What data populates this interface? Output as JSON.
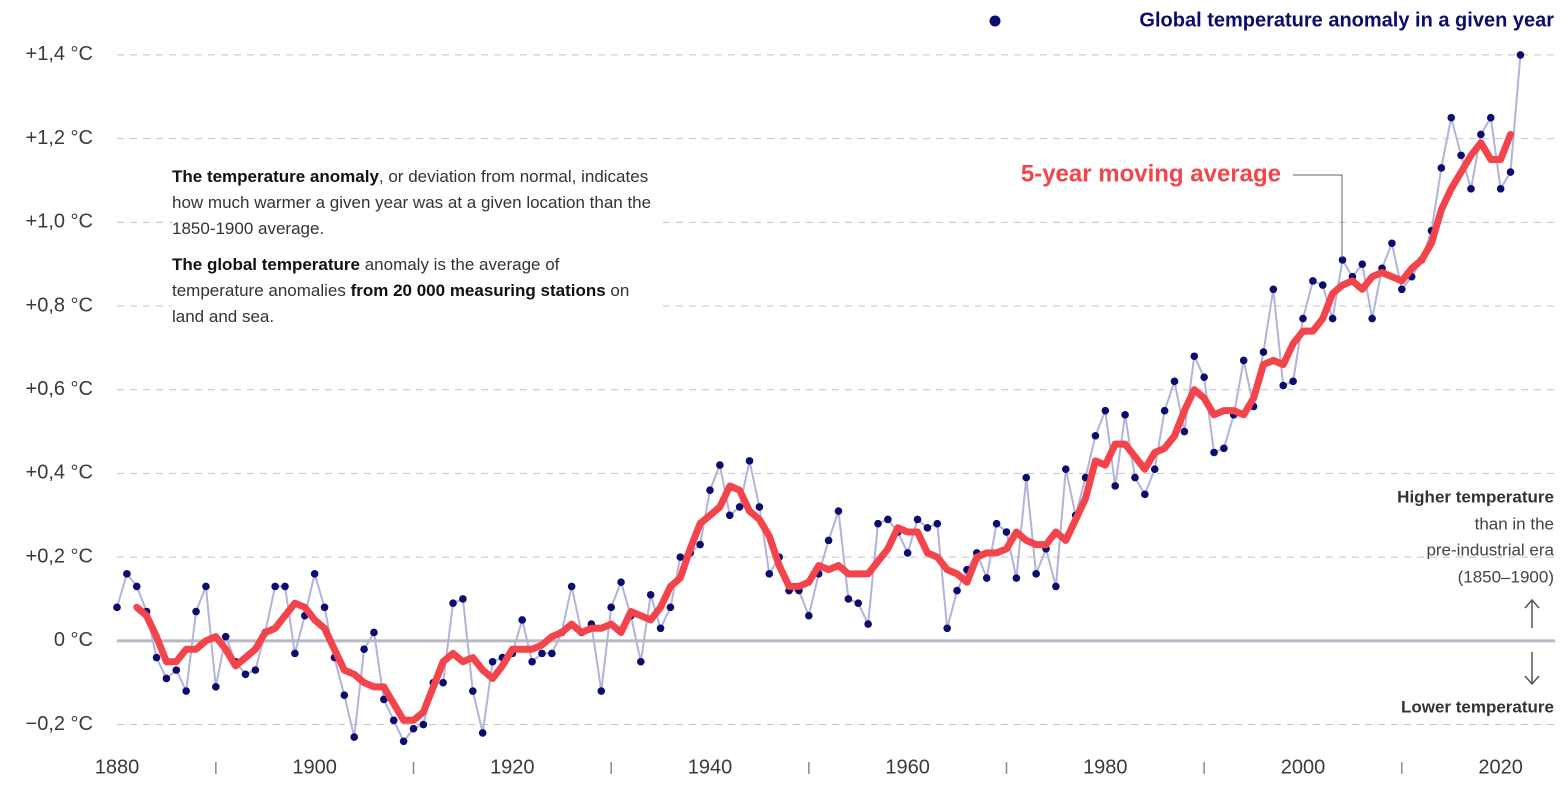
{
  "chart_data": {
    "type": "line",
    "xlim": [
      1880,
      2025.5
    ],
    "ylim": [
      -0.28,
      1.45
    ],
    "xticks": [
      1880,
      1900,
      1920,
      1940,
      1960,
      1980,
      2000,
      2020
    ],
    "xticks_minor": [
      1890,
      1910,
      1930,
      1950,
      1970,
      1990,
      2010
    ],
    "yticks": [
      {
        "value": -0.2,
        "label": "−0,2 °C"
      },
      {
        "value": 0,
        "label": "0 °C"
      },
      {
        "value": 0.2,
        "label": "+0,2 °C"
      },
      {
        "value": 0.4,
        "label": "+0,4 °C"
      },
      {
        "value": 0.6,
        "label": "+0,6 °C"
      },
      {
        "value": 0.8,
        "label": "+0,8 °C"
      },
      {
        "value": 1.0,
        "label": "+1,0 °C"
      },
      {
        "value": 1.2,
        "label": "+1,2 °C"
      },
      {
        "value": 1.4,
        "label": "+1,4 °C"
      }
    ],
    "grid": true,
    "series": [
      {
        "name": "Global temperature anomaly in a given year",
        "color": "#0b0c6e",
        "line_color": "#b3b3d9",
        "x": [
          1880,
          1881,
          1882,
          1883,
          1884,
          1885,
          1886,
          1887,
          1888,
          1889,
          1890,
          1891,
          1892,
          1893,
          1894,
          1895,
          1896,
          1897,
          1898,
          1899,
          1900,
          1901,
          1902,
          1903,
          1904,
          1905,
          1906,
          1907,
          1908,
          1909,
          1910,
          1911,
          1912,
          1913,
          1914,
          1915,
          1916,
          1917,
          1918,
          1919,
          1920,
          1921,
          1922,
          1923,
          1924,
          1925,
          1926,
          1927,
          1928,
          1929,
          1930,
          1931,
          1932,
          1933,
          1934,
          1935,
          1936,
          1937,
          1938,
          1939,
          1940,
          1941,
          1942,
          1943,
          1944,
          1945,
          1946,
          1947,
          1948,
          1949,
          1950,
          1951,
          1952,
          1953,
          1954,
          1955,
          1956,
          1957,
          1958,
          1959,
          1960,
          1961,
          1962,
          1963,
          1964,
          1965,
          1966,
          1967,
          1968,
          1969,
          1970,
          1971,
          1972,
          1973,
          1974,
          1975,
          1976,
          1977,
          1978,
          1979,
          1980,
          1981,
          1982,
          1983,
          1984,
          1985,
          1986,
          1987,
          1988,
          1989,
          1990,
          1991,
          1992,
          1993,
          1994,
          1995,
          1996,
          1997,
          1998,
          1999,
          2000,
          2001,
          2002,
          2003,
          2004,
          2005,
          2006,
          2007,
          2008,
          2009,
          2010,
          2011,
          2012,
          2013,
          2014,
          2015,
          2016,
          2017,
          2018,
          2019,
          2020,
          2021,
          2022
        ],
        "values": [
          0.08,
          0.16,
          0.13,
          0.07,
          -0.04,
          -0.09,
          -0.07,
          -0.12,
          0.07,
          0.13,
          -0.11,
          0.01,
          -0.05,
          -0.08,
          -0.07,
          0.02,
          0.13,
          0.13,
          -0.03,
          0.06,
          0.16,
          0.08,
          -0.04,
          -0.13,
          -0.23,
          -0.02,
          0.02,
          -0.14,
          -0.19,
          -0.24,
          -0.21,
          -0.2,
          -0.1,
          -0.1,
          0.09,
          0.1,
          -0.12,
          -0.22,
          -0.05,
          -0.04,
          -0.03,
          0.05,
          -0.05,
          -0.03,
          -0.03,
          0.02,
          0.13,
          0.02,
          0.04,
          -0.12,
          0.08,
          0.14,
          0.06,
          -0.05,
          0.11,
          0.03,
          0.08,
          0.2,
          0.21,
          0.23,
          0.36,
          0.42,
          0.3,
          0.32,
          0.43,
          0.32,
          0.16,
          0.2,
          0.12,
          0.12,
          0.06,
          0.16,
          0.24,
          0.31,
          0.1,
          0.09,
          0.04,
          0.28,
          0.29,
          0.26,
          0.21,
          0.29,
          0.27,
          0.28,
          0.03,
          0.12,
          0.17,
          0.21,
          0.15,
          0.28,
          0.26,
          0.15,
          0.39,
          0.16,
          0.22,
          0.13,
          0.41,
          0.3,
          0.39,
          0.49,
          0.55,
          0.37,
          0.54,
          0.39,
          0.35,
          0.41,
          0.55,
          0.62,
          0.5,
          0.68,
          0.63,
          0.45,
          0.46,
          0.54,
          0.67,
          0.56,
          0.69,
          0.84,
          0.61,
          0.62,
          0.77,
          0.86,
          0.85,
          0.77,
          0.91,
          0.87,
          0.9,
          0.77,
          0.89,
          0.95,
          0.84,
          0.87,
          0.91,
          0.98,
          1.13,
          1.25,
          1.16,
          1.08,
          1.21,
          1.25,
          1.08,
          1.12,
          1.4
        ]
      },
      {
        "name": "5-year moving average",
        "color": "#f2444a",
        "x": [
          1882,
          1883,
          1884,
          1885,
          1886,
          1887,
          1888,
          1889,
          1890,
          1891,
          1892,
          1893,
          1894,
          1895,
          1896,
          1897,
          1898,
          1899,
          1900,
          1901,
          1902,
          1903,
          1904,
          1905,
          1906,
          1907,
          1908,
          1909,
          1910,
          1911,
          1912,
          1913,
          1914,
          1915,
          1916,
          1917,
          1918,
          1919,
          1920,
          1921,
          1922,
          1923,
          1924,
          1925,
          1926,
          1927,
          1928,
          1929,
          1930,
          1931,
          1932,
          1933,
          1934,
          1935,
          1936,
          1937,
          1938,
          1939,
          1940,
          1941,
          1942,
          1943,
          1944,
          1945,
          1946,
          1947,
          1948,
          1949,
          1950,
          1951,
          1952,
          1953,
          1954,
          1955,
          1956,
          1957,
          1958,
          1959,
          1960,
          1961,
          1962,
          1963,
          1964,
          1965,
          1966,
          1967,
          1968,
          1969,
          1970,
          1971,
          1972,
          1973,
          1974,
          1975,
          1976,
          1977,
          1978,
          1979,
          1980,
          1981,
          1982,
          1983,
          1984,
          1985,
          1986,
          1987,
          1988,
          1989,
          1990,
          1991,
          1992,
          1993,
          1994,
          1995,
          1996,
          1997,
          1998,
          1999,
          2000,
          2001,
          2002,
          2003,
          2004,
          2005,
          2006,
          2007,
          2008,
          2009,
          2010,
          2011,
          2012,
          2013,
          2014,
          2015,
          2016,
          2017,
          2018,
          2019,
          2020,
          2021
        ],
        "values": [
          0.08,
          0.06,
          0.01,
          -0.05,
          -0.05,
          -0.02,
          -0.02,
          0.0,
          0.01,
          -0.02,
          -0.06,
          -0.04,
          -0.02,
          0.02,
          0.03,
          0.06,
          0.09,
          0.08,
          0.05,
          0.03,
          -0.02,
          -0.07,
          -0.08,
          -0.1,
          -0.11,
          -0.11,
          -0.15,
          -0.19,
          -0.19,
          -0.17,
          -0.11,
          -0.05,
          -0.03,
          -0.05,
          -0.04,
          -0.07,
          -0.09,
          -0.06,
          -0.02,
          -0.02,
          -0.02,
          -0.01,
          0.01,
          0.02,
          0.04,
          0.02,
          0.03,
          0.03,
          0.04,
          0.02,
          0.07,
          0.06,
          0.05,
          0.08,
          0.13,
          0.15,
          0.22,
          0.28,
          0.3,
          0.32,
          0.37,
          0.36,
          0.31,
          0.29,
          0.25,
          0.18,
          0.13,
          0.13,
          0.14,
          0.18,
          0.17,
          0.18,
          0.16,
          0.16,
          0.16,
          0.19,
          0.22,
          0.27,
          0.26,
          0.26,
          0.21,
          0.2,
          0.17,
          0.16,
          0.14,
          0.2,
          0.21,
          0.21,
          0.22,
          0.26,
          0.24,
          0.23,
          0.23,
          0.26,
          0.24,
          0.29,
          0.34,
          0.43,
          0.42,
          0.47,
          0.47,
          0.44,
          0.41,
          0.45,
          0.46,
          0.49,
          0.55,
          0.6,
          0.58,
          0.54,
          0.55,
          0.55,
          0.54,
          0.58,
          0.66,
          0.67,
          0.66,
          0.71,
          0.74,
          0.74,
          0.77,
          0.83,
          0.85,
          0.86,
          0.84,
          0.87,
          0.88,
          0.87,
          0.86,
          0.89,
          0.91,
          0.95,
          1.03,
          1.08,
          1.12,
          1.16,
          1.19,
          1.15,
          1.15,
          1.21
        ]
      }
    ],
    "notes": [
      [
        {
          "text": "The temperature anomaly",
          "bold": true
        },
        {
          "text": ", or deviation from normal, indicates how much warmer a given year was at a given location than the 1850-1900 average."
        }
      ],
      [
        {
          "text": "The global temperature",
          "bold": true
        },
        {
          "text": " anomaly is the average of temperature anomalies "
        },
        {
          "text": "from 20 000 measuring stations",
          "bold": true
        },
        {
          "text": " on land and sea."
        }
      ]
    ],
    "annotations": {
      "higher": [
        "Higher temperature",
        "than in the",
        "pre-industrial era",
        "(1850–1900)"
      ],
      "lower": "Lower temperature"
    }
  }
}
